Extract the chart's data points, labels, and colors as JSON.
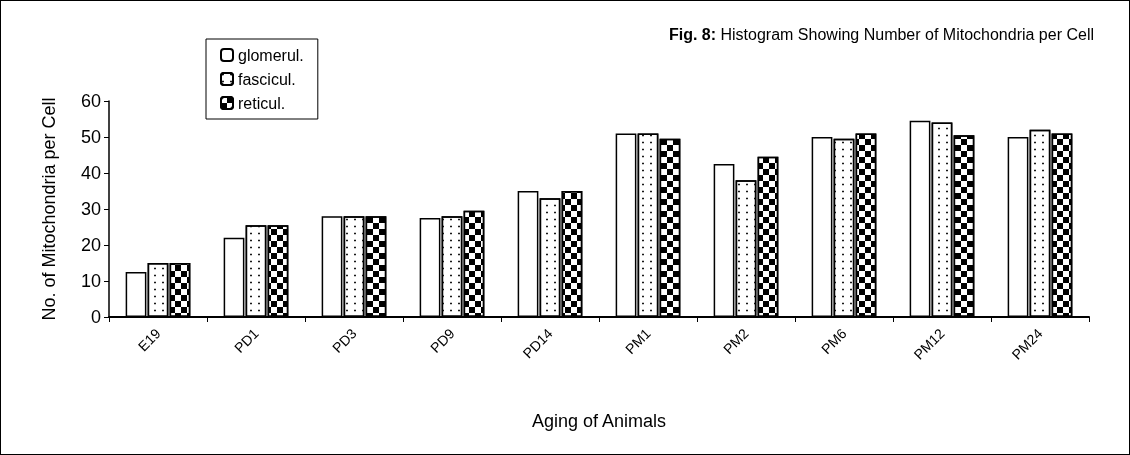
{
  "chart_data": {
    "type": "bar",
    "title": "Fig. 8: Histogram Showing Number of Mitochondria per Cell",
    "xlabel": "Aging of Animals",
    "ylabel": "No. of Mitochondria per Cell",
    "categories": [
      "E19",
      "PD1",
      "PD3",
      "PD9",
      "PD14",
      "PM1",
      "PM2",
      "PM6",
      "PM12",
      "PM24"
    ],
    "series": [
      {
        "name": "glomerul.",
        "color": "#ffffff",
        "values": [
          12.5,
          22,
          28,
          27.5,
          35,
          51,
          42.5,
          50,
          54.5,
          50
        ]
      },
      {
        "name": "fascicul.",
        "color": "#ffffff",
        "values": [
          15,
          25.5,
          28,
          28,
          33,
          51,
          38,
          49.5,
          54,
          52
        ]
      },
      {
        "name": "reticul.",
        "color": "#ffffff",
        "values": [
          15,
          25.5,
          28,
          29.5,
          35,
          49.5,
          44.5,
          51,
          50.5,
          51
        ]
      }
    ],
    "ylim": [
      0,
      60
    ],
    "yticks": [
      0,
      10,
      20,
      30,
      40,
      50,
      60
    ],
    "grid": false,
    "legend": "top left"
  }
}
